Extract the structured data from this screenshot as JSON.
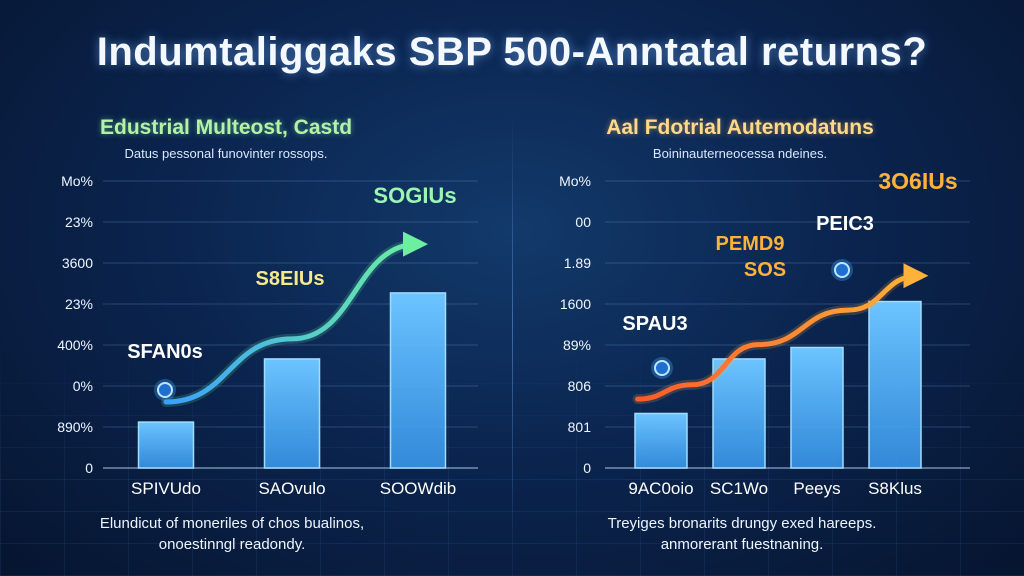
{
  "title": "Indumtaliggaks SBP 500-Anntatal returns?",
  "chart_data": [
    {
      "type": "bar",
      "title": "Edustrial Multeost, Castd",
      "subtitle": "Datus pessonal funovinter rossops.",
      "ytick_labels": [
        "Mo%",
        "23%",
        "3600",
        "23%",
        "400%",
        "0%",
        "890%",
        "0"
      ],
      "categories": [
        "SPIVUdo",
        "SAOvulo",
        "SOOWdib"
      ],
      "values": [
        0.16,
        0.38,
        0.61
      ],
      "ylim": [
        0,
        1
      ],
      "trend_line": {
        "x": [
          0,
          1,
          2
        ],
        "y": [
          0.23,
          0.45,
          0.78
        ]
      },
      "annotations": [
        {
          "text": "SFAN0s",
          "color": "#ffffff"
        },
        {
          "text": "S8EIUs",
          "color": "#f5e98a"
        },
        {
          "text": "SOGIUs",
          "color": "#9cf5b0"
        }
      ],
      "footnote": [
        "Elundicut of moneriles of chos bualinos,",
        "onoestinngl readondy."
      ],
      "colors": {
        "bar": "#3a9cf2",
        "line_start": "#3aa0ff",
        "line_end": "#6cf0a0"
      }
    },
    {
      "type": "bar",
      "title": "Aal Fdotrial Autemodatuns",
      "subtitle": "Boininauterneocessa ndeines.",
      "ytick_labels": [
        "Mo%",
        "00",
        "1.89",
        "1600",
        "89%",
        "806",
        "801",
        "0"
      ],
      "categories": [
        "9AC0oio",
        "SC1Wo",
        "Peeys",
        "S8Klus"
      ],
      "values": [
        0.19,
        0.38,
        0.42,
        0.58
      ],
      "ylim": [
        0,
        1
      ],
      "trend_line": {
        "x": [
          -0.3,
          0.4,
          1.25,
          2.4,
          3.3
        ],
        "y": [
          0.24,
          0.29,
          0.43,
          0.55,
          0.67
        ]
      },
      "annotations": [
        {
          "text": "SPAU3",
          "color": "#ffffff"
        },
        {
          "text": "PEMD9",
          "color": "#ffb13a"
        },
        {
          "text": "SOS",
          "color": "#ffb13a"
        },
        {
          "text": "PEIC3",
          "color": "#ffffff"
        },
        {
          "text": "3O6IUs",
          "color": "#ffb13a"
        }
      ],
      "footnote": [
        "Treyiges bronarits drungy exed hareeps.",
        "anmorerant fuestnaning."
      ],
      "colors": {
        "bar": "#3a9cf2",
        "line_start": "#ff5a2a",
        "line_end": "#ffb13a"
      }
    }
  ]
}
